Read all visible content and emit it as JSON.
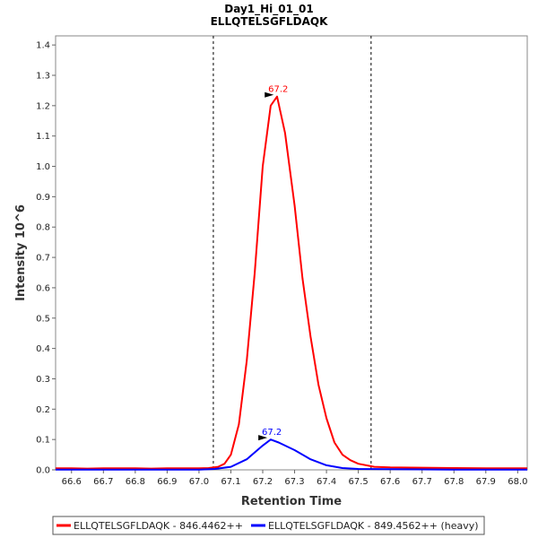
{
  "chart_data": {
    "type": "line",
    "title": "Day1_Hi_01_01",
    "subtitle": "ELLQTELSGFLDAQK",
    "xlabel": "Retention Time",
    "ylabel": "Intensity 10^6",
    "xlim": [
      66.55,
      68.03
    ],
    "ylim": [
      0,
      1.43
    ],
    "x_ticks": [
      "66.6",
      "66.7",
      "66.8",
      "66.9",
      "67.0",
      "67.1",
      "67.2",
      "67.3",
      "67.4",
      "67.5",
      "67.6",
      "67.7",
      "67.8",
      "67.9",
      "68.0"
    ],
    "y_ticks": [
      "0.0",
      "0.1",
      "0.2",
      "0.3",
      "0.4",
      "0.5",
      "0.6",
      "0.7",
      "0.8",
      "0.9",
      "1.0",
      "1.1",
      "1.2",
      "1.3",
      "1.4"
    ],
    "boundaries": [
      67.045,
      67.54
    ],
    "series": [
      {
        "name": "ELLQTELSGFLDAQK - 846.4462++",
        "color": "#ff0000",
        "x": [
          66.55,
          66.6,
          66.65,
          66.7,
          66.75,
          66.8,
          66.85,
          66.9,
          66.95,
          67.0,
          67.03,
          67.06,
          67.08,
          67.1,
          67.125,
          67.15,
          67.175,
          67.2,
          67.225,
          67.245,
          67.27,
          67.3,
          67.325,
          67.35,
          67.375,
          67.4,
          67.425,
          67.45,
          67.475,
          67.5,
          67.55,
          67.6,
          67.7,
          67.8,
          67.9,
          68.03
        ],
        "y": [
          0.005,
          0.005,
          0.004,
          0.005,
          0.005,
          0.005,
          0.004,
          0.005,
          0.005,
          0.005,
          0.006,
          0.01,
          0.02,
          0.05,
          0.15,
          0.36,
          0.65,
          1.0,
          1.2,
          1.23,
          1.11,
          0.87,
          0.63,
          0.44,
          0.28,
          0.17,
          0.09,
          0.05,
          0.032,
          0.02,
          0.01,
          0.008,
          0.007,
          0.006,
          0.005,
          0.005
        ],
        "peak_label": "67.2",
        "peak": [
          67.24,
          1.23
        ]
      },
      {
        "name": "ELLQTELSGFLDAQK - 849.4562++ (heavy)",
        "color": "#0000ff",
        "x": [
          66.55,
          66.7,
          66.9,
          67.0,
          67.05,
          67.1,
          67.15,
          67.2,
          67.225,
          67.25,
          67.3,
          67.35,
          67.4,
          67.45,
          67.5,
          67.6,
          67.8,
          68.03
        ],
        "y": [
          0.001,
          0.001,
          0.001,
          0.001,
          0.003,
          0.01,
          0.035,
          0.08,
          0.1,
          0.09,
          0.065,
          0.035,
          0.015,
          0.006,
          0.003,
          0.002,
          0.001,
          0.001
        ],
        "peak_label": "67.2",
        "peak": [
          67.22,
          0.1
        ]
      }
    ],
    "legend": "bottom"
  }
}
